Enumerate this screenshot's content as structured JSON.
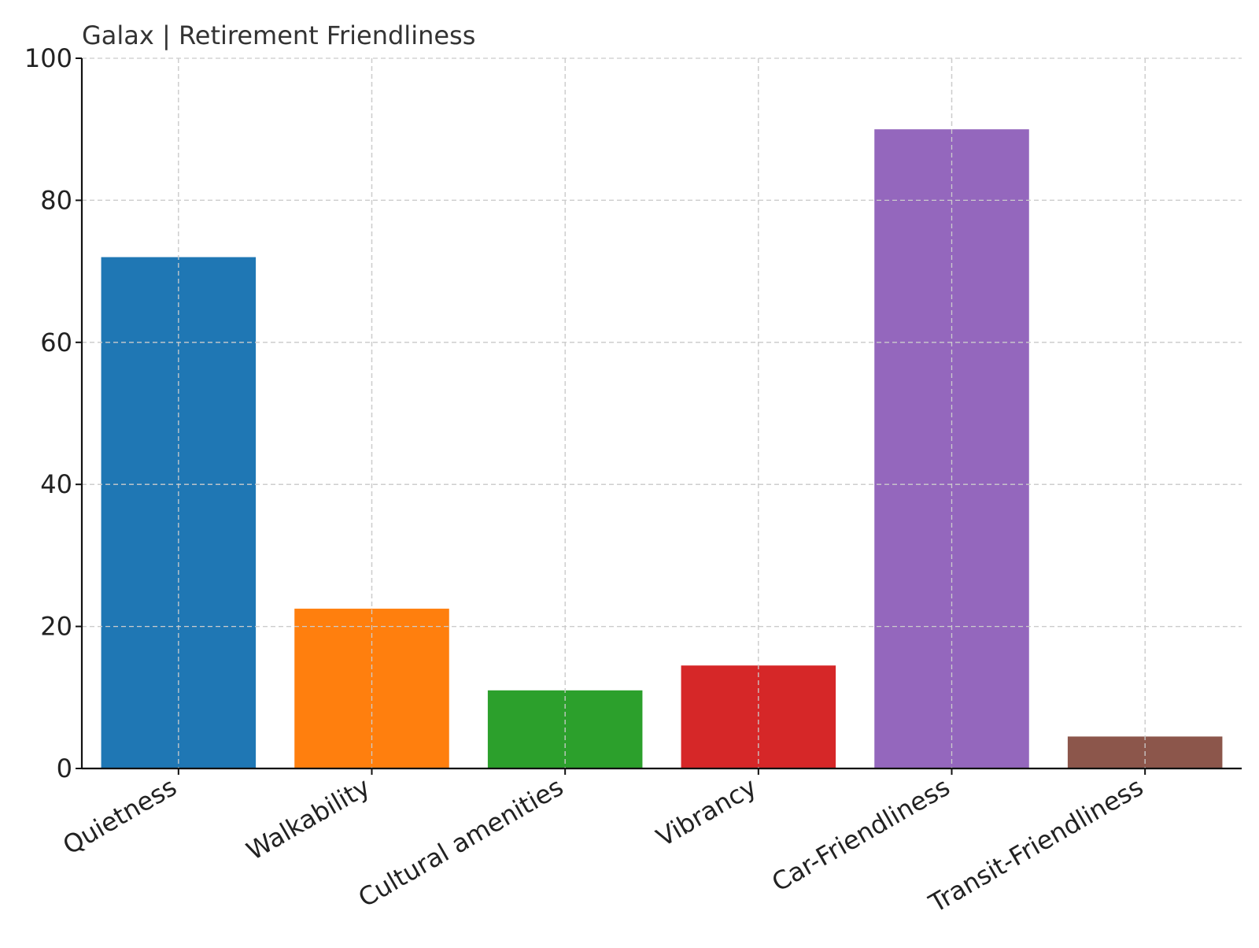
{
  "chart_data": {
    "type": "bar",
    "title": "Galax | Retirement Friendliness",
    "xlabel": "",
    "ylabel": "",
    "categories": [
      "Quietness",
      "Walkability",
      "Cultural amenities",
      "Vibrancy",
      "Car-Friendliness",
      "Transit-Friendliness"
    ],
    "values": [
      72,
      22.5,
      11,
      14.5,
      90,
      4.5
    ],
    "colors": [
      "#1f77b4",
      "#ff7f0e",
      "#2ca02c",
      "#d62728",
      "#9467bd",
      "#8c564b"
    ],
    "ylim": [
      0,
      100
    ],
    "yticks": [
      0,
      20,
      40,
      60,
      80,
      100
    ],
    "grid": true,
    "legend": "none"
  }
}
